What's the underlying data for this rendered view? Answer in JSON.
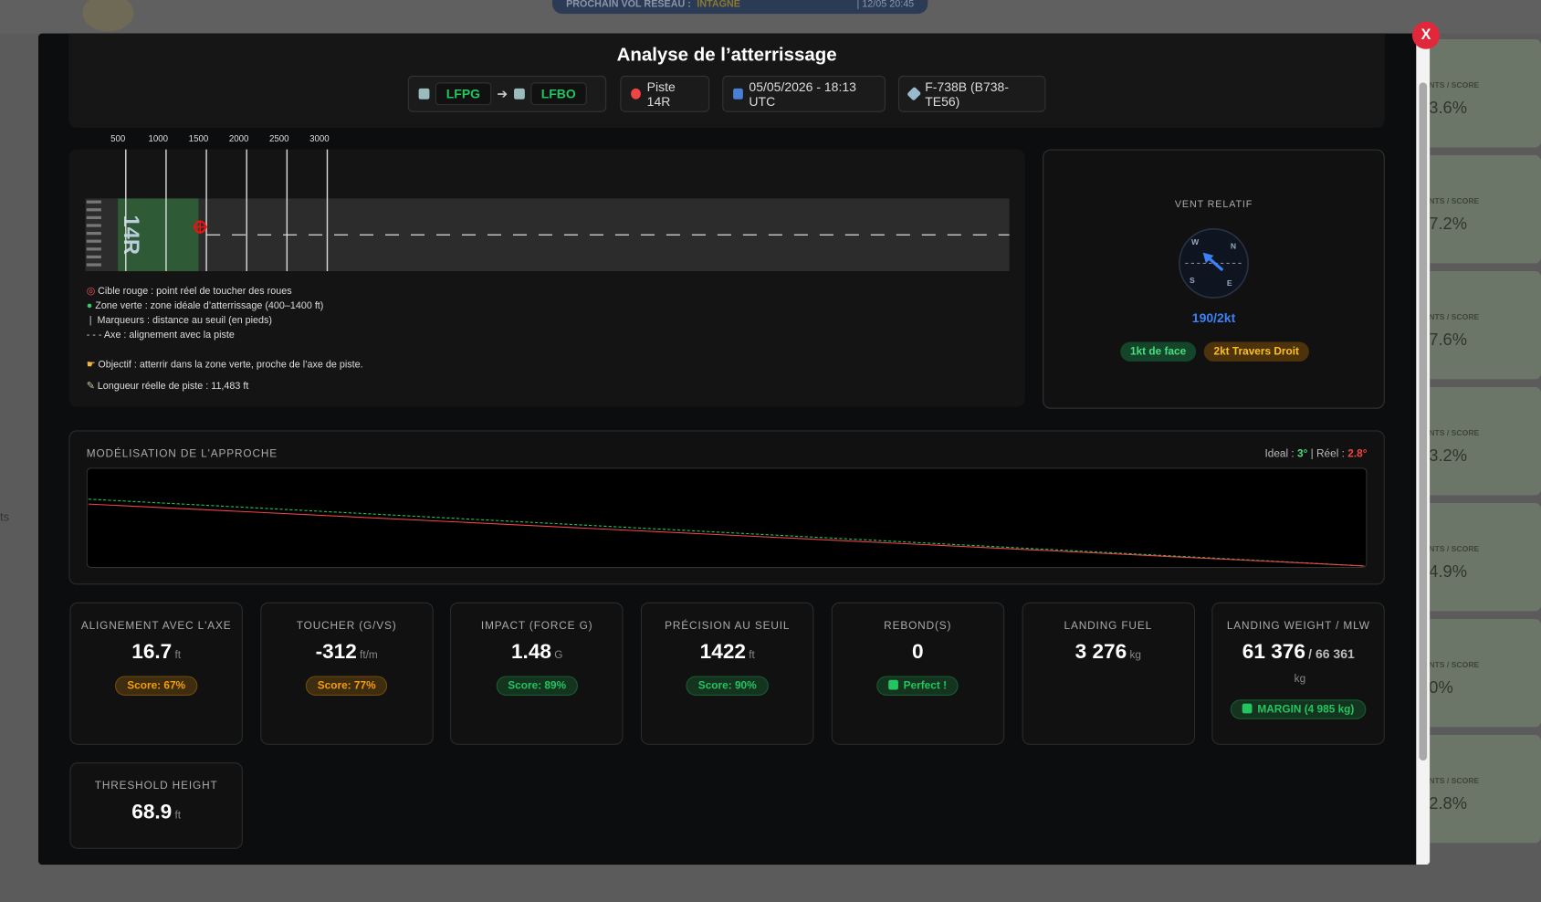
{
  "background": {
    "banner_label": "PROCHAIN VOL RÉSEAU :",
    "banner_name": "INTAGNE",
    "banner_time": "| 12/05 20:45",
    "side_text": "ts",
    "side_cards": [
      {
        "label": "NTS / SCORE",
        "value": "3.6%"
      },
      {
        "label": "NTS / SCORE",
        "value": "7.2%"
      },
      {
        "label": "NTS / SCORE",
        "value": "7.6%"
      },
      {
        "label": "NTS / SCORE",
        "value": "3.2%"
      },
      {
        "label": "NTS / SCORE",
        "value": "4.9%"
      },
      {
        "label": "NTS / SCORE",
        "value": "0%"
      },
      {
        "label": "NTS / SCORE",
        "value": "2.8%"
      }
    ]
  },
  "modal": {
    "close": "X",
    "title": "Analyse de l’atterrissage",
    "route": {
      "from": "LFPG",
      "to": "LFBO"
    },
    "runway_chip": "Piste 14R",
    "date": "05/05/2026 - 18:13 UTC",
    "aircraft": "F-738B (B738-TE56)",
    "runway": {
      "label": "14R",
      "markers": [
        500,
        1000,
        1500,
        2000,
        2500,
        3000
      ],
      "legend": [
        "Cible rouge : point réel de toucher des roues",
        "Zone verte : zone idéale d’atterrissage (400–1400 ft)",
        "Marqueurs : distance au seuil (en pieds)",
        "Axe : alignement avec la piste"
      ],
      "objective": "Objectif : atterrir dans la zone verte, proche de l’axe de piste.",
      "length_label": "Longueur réelle de piste :",
      "length_value": "11,483 ft"
    },
    "wind": {
      "title": "VENT RELATIF",
      "compass": {
        "w": "W",
        "n": "N",
        "s": "S",
        "e": "E"
      },
      "value": "190/2kt",
      "headwind": "1kt de face",
      "crosswind": "2kt Travers Droit"
    },
    "approach": {
      "title": "MODÉLISATION DE L'APPROCHE",
      "ideal_label": "Ideal :",
      "ideal": "3°",
      "real_label": "| Réel :",
      "real": "2.8°"
    },
    "cards": [
      {
        "label": "ALIGNEMENT AVEC L'AXE",
        "value": 16.7,
        "unit": "ft",
        "badge": "Score: 67%",
        "badge_color": "#f59e0b"
      },
      {
        "label": "TOUCHER (G/VS)",
        "value": -312,
        "unit": "ft/m",
        "badge": "Score: 77%",
        "badge_color": "#f59e0b"
      },
      {
        "label": "IMPACT (FORCE G)",
        "value": 1.48,
        "unit": "G",
        "badge": "Score: 89%",
        "badge_color": "#22c55e"
      },
      {
        "label": "PRÉCISION AU SEUIL",
        "value": 1422,
        "unit": "ft",
        "badge": "Score: 90%",
        "badge_color": "#22c55e"
      },
      {
        "label": "REBOND(S)",
        "value": 0,
        "badge": "Perfect !",
        "badge_color": "#22c55e"
      },
      {
        "label": "LANDING FUEL",
        "value": "3 276",
        "unit": "kg"
      },
      {
        "label": "LANDING WEIGHT / MLW",
        "value": "61 376",
        "extra": "/ 66 361",
        "unit": "kg",
        "badge": "MARGIN (4 985 kg)",
        "badge_color": "#22c55e"
      },
      {
        "label": "THRESHOLD HEIGHT",
        "value": 68.9,
        "unit": "ft"
      }
    ]
  }
}
